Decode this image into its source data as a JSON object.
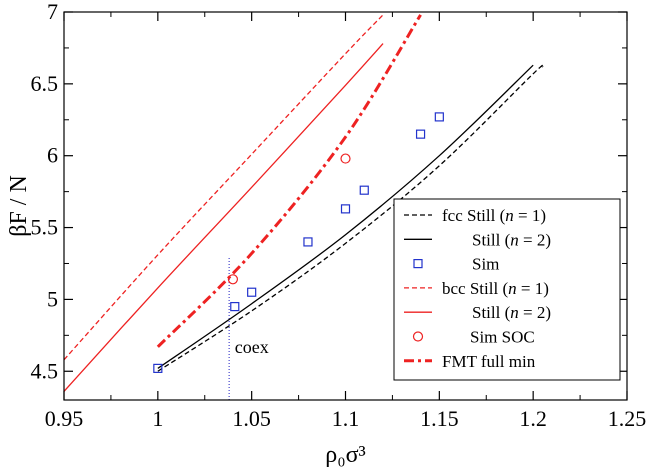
{
  "chart_data": {
    "type": "line",
    "title": "",
    "xlabel": "ρ₀σ³",
    "ylabel": "βF / N",
    "xlim": [
      0.95,
      1.25
    ],
    "ylim": [
      4.3,
      7.0
    ],
    "x_ticks": [
      0.95,
      1.0,
      1.05,
      1.1,
      1.15,
      1.2,
      1.25
    ],
    "x_tick_labels": [
      "0.95",
      "1",
      "1.05",
      "1.1",
      "1.15",
      "1.2",
      "1.25"
    ],
    "y_ticks": [
      4.5,
      5.0,
      5.5,
      6.0,
      6.5,
      7.0
    ],
    "y_tick_labels": [
      "4.5",
      "5",
      "5.5",
      "6",
      "6.5",
      "7"
    ],
    "grid": false,
    "legend_position": "bottom-right",
    "series": [
      {
        "name": "fcc Still (n = 1)",
        "legend_label": "fcc Still (n = 1)",
        "kind": "line",
        "color": "#000000",
        "dash": "5,3",
        "width": 1.3,
        "x": [
          1.0,
          1.05,
          1.1,
          1.15,
          1.2,
          1.205
        ],
        "y": [
          4.5,
          4.92,
          5.39,
          5.93,
          6.57,
          6.62
        ]
      },
      {
        "name": "fcc Still (n = 2)",
        "legend_label": "Still (n = 2)",
        "kind": "line",
        "color": "#000000",
        "dash": "",
        "width": 1.3,
        "x": [
          1.0,
          1.05,
          1.1,
          1.15,
          1.2
        ],
        "y": [
          4.52,
          4.97,
          5.45,
          6.0,
          6.63
        ]
      },
      {
        "name": "fcc Sim",
        "legend_label": "Sim",
        "kind": "marker-square",
        "color": "#2233cc",
        "x": [
          1.0,
          1.041,
          1.05,
          1.08,
          1.1,
          1.11,
          1.14,
          1.15
        ],
        "y": [
          4.52,
          4.95,
          5.05,
          5.4,
          5.63,
          5.76,
          6.15,
          6.27
        ]
      },
      {
        "name": "bcc Still (n = 1)",
        "legend_label": "bcc Still (n = 1)",
        "kind": "line",
        "color": "#ee2222",
        "dash": "5,3",
        "width": 1.3,
        "x": [
          0.95,
          1.0,
          1.05,
          1.1,
          1.12
        ],
        "y": [
          4.58,
          5.31,
          6.01,
          6.71,
          6.98
        ]
      },
      {
        "name": "bcc Still (n = 2)",
        "legend_label": "Still (n = 2)",
        "kind": "line",
        "color": "#ee2222",
        "dash": "",
        "width": 1.3,
        "x": [
          0.95,
          1.0,
          1.05,
          1.1,
          1.12
        ],
        "y": [
          4.36,
          5.08,
          5.78,
          6.49,
          6.78
        ]
      },
      {
        "name": "bcc Sim SOC",
        "legend_label": "Sim SOC",
        "kind": "marker-circle",
        "color": "#ee2222",
        "x": [
          1.04,
          1.1
        ],
        "y": [
          5.14,
          5.98
        ]
      },
      {
        "name": "FMT full min",
        "legend_label": "FMT full min",
        "kind": "line",
        "color": "#ee2222",
        "dash": "10,4,3,4",
        "width": 3,
        "x": [
          1.0,
          1.05,
          1.1,
          1.14
        ],
        "y": [
          4.67,
          5.32,
          6.13,
          6.98
        ]
      }
    ],
    "annotations": [
      {
        "type": "vline",
        "x": 1.038,
        "y_range": [
          4.3,
          5.3
        ],
        "color": "#4444cc",
        "dash": "1,2"
      },
      {
        "type": "text",
        "text": "coex",
        "x": 1.041,
        "y": 4.67
      }
    ]
  }
}
